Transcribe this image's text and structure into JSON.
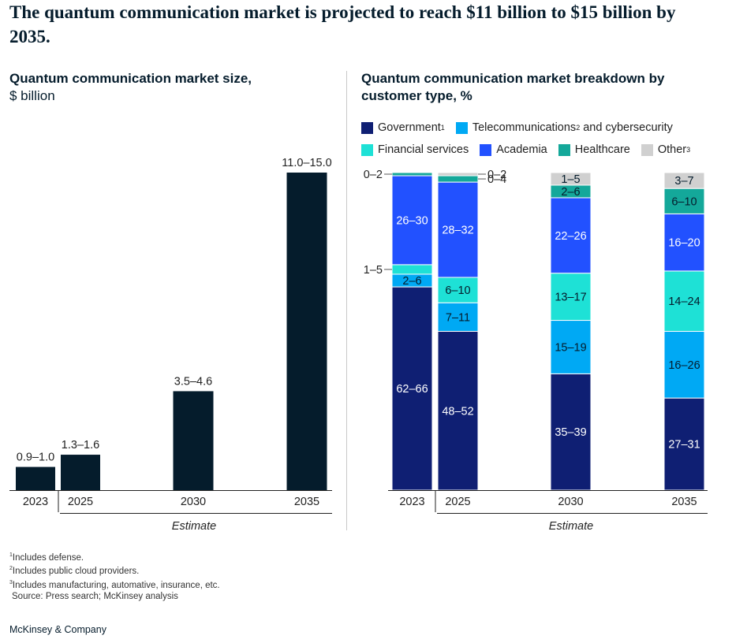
{
  "header": {
    "title": "The quantum communication market is projected to reach $11 billion to $15 billion by 2035."
  },
  "left_panel": {
    "title": "Quantum communication market size,",
    "subtitle": "$ billion",
    "estimate_label": "Estimate"
  },
  "right_panel": {
    "title": "Quantum communication market breakdown by customer type, %",
    "estimate_label": "Estimate"
  },
  "legend": {
    "items": [
      {
        "label": "Government",
        "sup": "1",
        "color": "#0f1f73"
      },
      {
        "label": "Telecommunications",
        "sup": "2",
        "suffix": " and cybersecurity",
        "color": "#00a9f4"
      },
      {
        "label": "Financial services",
        "sup": "",
        "color": "#1ee1d6"
      },
      {
        "label": "Academia",
        "sup": "",
        "color": "#2251ff"
      },
      {
        "label": "Healthcare",
        "sup": "",
        "color": "#14a89a"
      },
      {
        "label": "Other",
        "sup": "3",
        "color": "#d0d0d0"
      }
    ]
  },
  "chart_data": [
    {
      "type": "bar",
      "title": "Quantum communication market size, $ billion",
      "categories": [
        "2023",
        "2025",
        "2030",
        "2035"
      ],
      "values": [
        0.95,
        1.45,
        4.05,
        13.0
      ],
      "labels": [
        "0.9–1.0",
        "1.3–1.6",
        "3.5–4.6",
        "11.0–15.0"
      ],
      "bar_color": "#051c2c",
      "xlabel": "Estimate",
      "ylabel": "$ billion",
      "ylim": [
        0,
        13.0
      ]
    },
    {
      "type": "bar",
      "stacked": true,
      "title": "Quantum communication market breakdown by customer type, %",
      "categories": [
        "2023",
        "2025",
        "2030",
        "2035"
      ],
      "xlabel": "Estimate",
      "series": [
        {
          "name": "Government",
          "color": "#0f1f73",
          "values": [
            64,
            50,
            37,
            29
          ],
          "labels": [
            "62–66",
            "48–52",
            "35–39",
            "27–31"
          ]
        },
        {
          "name": "Telecommunications and cybersecurity",
          "color": "#00a9f4",
          "values": [
            4,
            9,
            17,
            21
          ],
          "labels": [
            "2–6",
            "7–11",
            "15–19",
            "16–26"
          ]
        },
        {
          "name": "Financial services",
          "color": "#1ee1d6",
          "values": [
            3,
            8,
            15,
            19
          ],
          "labels": [
            "1–5",
            "6–10",
            "13–17",
            "14–24"
          ]
        },
        {
          "name": "Academia",
          "color": "#2251ff",
          "values": [
            28,
            30,
            24,
            18
          ],
          "labels": [
            "26–30",
            "28–32",
            "22–26",
            "16–20"
          ]
        },
        {
          "name": "Healthcare",
          "color": "#14a89a",
          "values": [
            1,
            2,
            4,
            8
          ],
          "labels": [
            "0–2",
            "0–4",
            "2–6",
            "6–10"
          ]
        },
        {
          "name": "Other",
          "color": "#d0d0d0",
          "values": [
            0,
            1,
            4,
            5
          ],
          "labels": [
            "",
            "0–2",
            "1–5",
            "3–7"
          ]
        }
      ],
      "ylim": [
        0,
        100
      ]
    }
  ],
  "footnotes": [
    {
      "sup": "1",
      "text": "Includes defense."
    },
    {
      "sup": "2",
      "text": "Includes public cloud providers."
    },
    {
      "sup": "3",
      "text": "Includes manufacturing, automative, insurance, etc."
    },
    {
      "sup": "",
      "text": "Source: Press search; McKinsey analysis"
    }
  ],
  "brand": "McKinsey & Company"
}
